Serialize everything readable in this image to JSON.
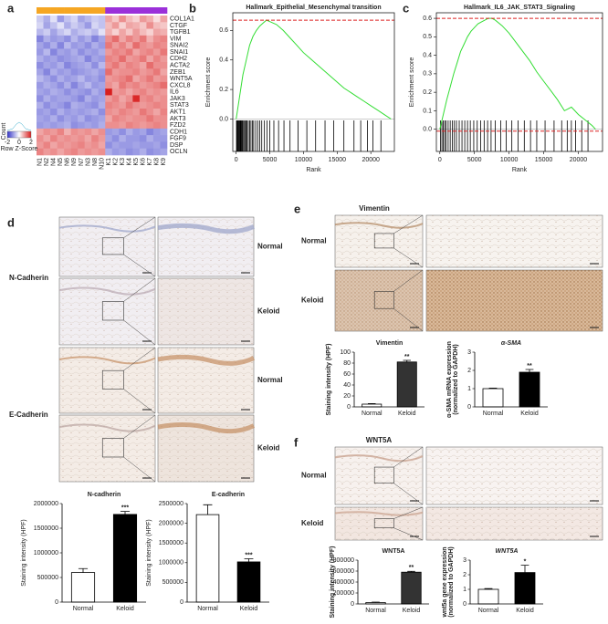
{
  "panel_labels": [
    "a",
    "b",
    "c",
    "d",
    "e",
    "f"
  ],
  "micrographs": {
    "d": {
      "rows": [
        "Normal",
        "Keloid",
        "Normal",
        "Keloid"
      ],
      "groups": [
        "N-Cadherin",
        "E-Cadherin"
      ]
    },
    "e": {
      "title": "Vimentin",
      "rows": [
        "Normal",
        "Keloid"
      ]
    },
    "f": {
      "title": "WNT5A",
      "rows": [
        "Normal",
        "Keloid"
      ]
    }
  },
  "chart_data": [
    {
      "type": "heatmap",
      "rows": [
        "COL1A1",
        "CTGF",
        "TGFB1",
        "VIM",
        "SNAI2",
        "SNAI1",
        "CDH2",
        "ACTA2",
        "ZEB1",
        "WNT5A",
        "CXCL8",
        "IL6",
        "JAK3",
        "STAT3",
        "AKT1",
        "AKT3",
        "FZD2",
        "CDH1",
        "FGF9",
        "DSP",
        "OCLN"
      ],
      "columns": [
        "N1",
        "N2",
        "N4",
        "N5",
        "N6",
        "N9",
        "N7",
        "N3",
        "N8",
        "N10",
        "K1",
        "K2",
        "K3",
        "K4",
        "K5",
        "K6",
        "K7",
        "K8",
        "K9"
      ],
      "column_colors": [
        "#f5a623",
        "#f5a623",
        "#f5a623",
        "#f5a623",
        "#f5a623",
        "#f5a623",
        "#f5a623",
        "#f5a623",
        "#f5a623",
        "#f5a623",
        "#9b30d9",
        "#9b30d9",
        "#9b30d9",
        "#9b30d9",
        "#9b30d9",
        "#9b30d9",
        "#9b30d9",
        "#9b30d9",
        "#9b30d9"
      ],
      "colorscale": [
        "#3434c8",
        "#ffffff",
        "#d81e1e"
      ],
      "zlim": [
        -2,
        2
      ],
      "colorbar": {
        "label": "Count",
        "title": "Row Z-Score",
        "ticks": [
          -2,
          0,
          2
        ]
      },
      "values": [
        [
          -0.5,
          -0.8,
          -0.3,
          -1.0,
          -0.6,
          -0.4,
          -0.9,
          -0.7,
          -0.5,
          -0.6,
          0.8,
          0.5,
          1.0,
          0.6,
          0.4,
          0.9,
          0.7,
          0.3,
          0.8
        ],
        [
          -0.4,
          -0.9,
          -0.6,
          -0.3,
          -0.8,
          -0.5,
          -0.7,
          -1.0,
          -0.4,
          -0.6,
          0.6,
          0.9,
          0.4,
          0.8,
          0.7,
          0.5,
          1.0,
          0.6,
          0.5
        ],
        [
          -0.7,
          -0.5,
          -0.9,
          -0.6,
          -0.4,
          -0.8,
          -0.6,
          -0.5,
          -0.7,
          -0.3,
          0.7,
          0.4,
          0.8,
          0.5,
          0.9,
          0.6,
          0.4,
          0.8,
          0.7
        ],
        [
          -1.2,
          -0.8,
          -1.0,
          -0.9,
          -1.1,
          -0.7,
          -1.0,
          -0.8,
          -1.2,
          -0.9,
          1.0,
          1.3,
          0.8,
          1.1,
          0.9,
          1.2,
          0.7,
          1.0,
          1.1
        ],
        [
          -0.9,
          -1.1,
          -0.8,
          -1.2,
          -0.7,
          -1.0,
          -0.9,
          -1.1,
          -0.8,
          -1.0,
          1.2,
          0.9,
          1.1,
          0.8,
          1.3,
          1.0,
          0.9,
          1.1,
          1.0
        ],
        [
          -1.0,
          -0.7,
          -1.2,
          -0.9,
          -1.0,
          -0.8,
          -1.1,
          -0.9,
          -1.0,
          -0.8,
          0.9,
          1.1,
          1.0,
          1.2,
          0.8,
          1.0,
          1.1,
          0.9,
          1.2
        ],
        [
          -0.8,
          -1.0,
          -0.9,
          -1.1,
          -1.0,
          -0.9,
          -0.8,
          -1.2,
          -0.9,
          -1.0,
          1.1,
          1.0,
          1.3,
          0.9,
          1.0,
          1.2,
          0.8,
          1.1,
          0.9
        ],
        [
          -1.1,
          -0.9,
          -1.0,
          -0.8,
          -1.2,
          -1.0,
          -0.9,
          -0.8,
          -1.1,
          -0.7,
          1.0,
          1.2,
          0.9,
          1.1,
          1.0,
          0.8,
          1.3,
          1.0,
          1.0
        ],
        [
          -0.9,
          -1.2,
          -0.8,
          -1.0,
          -0.9,
          -1.1,
          -1.0,
          -0.9,
          -0.8,
          -1.0,
          1.3,
          0.9,
          1.0,
          1.0,
          1.1,
          0.9,
          1.0,
          1.2,
          0.8
        ],
        [
          -0.7,
          -0.9,
          -1.1,
          -0.8,
          -1.0,
          -0.9,
          -0.7,
          -1.0,
          -0.9,
          -1.1,
          0.9,
          1.0,
          1.1,
          1.3,
          0.8,
          1.0,
          1.2,
          0.9,
          1.0
        ],
        [
          -1.0,
          -0.8,
          -0.9,
          -1.1,
          -0.8,
          -1.2,
          -0.9,
          -0.7,
          -1.0,
          -0.9,
          1.0,
          0.8,
          1.2,
          1.0,
          1.1,
          0.9,
          1.0,
          1.1,
          1.3
        ],
        [
          -0.9,
          -1.0,
          -0.8,
          -0.9,
          -1.1,
          -0.9,
          -1.0,
          -1.1,
          -0.8,
          -1.0,
          2.0,
          0.9,
          1.0,
          0.8,
          1.0,
          1.1,
          0.9,
          1.0,
          0.9
        ],
        [
          -1.1,
          -0.8,
          -1.0,
          -0.9,
          -0.9,
          -1.0,
          -1.2,
          -0.8,
          -1.0,
          -0.9,
          0.9,
          1.1,
          0.8,
          1.0,
          1.9,
          1.0,
          1.1,
          0.9,
          1.0
        ],
        [
          -0.8,
          -1.1,
          -0.9,
          -1.0,
          -1.2,
          -0.8,
          -0.9,
          -1.0,
          -1.1,
          -0.8,
          1.1,
          1.0,
          0.9,
          1.2,
          1.0,
          0.9,
          1.0,
          1.1,
          1.0
        ],
        [
          -1.0,
          -0.9,
          -1.1,
          -0.8,
          -1.0,
          -0.9,
          -1.0,
          -0.9,
          -0.8,
          -1.1,
          1.0,
          0.9,
          1.1,
          1.0,
          0.9,
          1.2,
          1.0,
          0.8,
          1.1
        ],
        [
          -0.9,
          -1.0,
          -0.8,
          -1.1,
          -0.9,
          -1.0,
          -0.8,
          -1.1,
          -1.0,
          -0.9,
          0.8,
          1.1,
          1.0,
          0.9,
          1.0,
          1.0,
          1.2,
          1.0,
          1.0
        ],
        [
          -1.0,
          -0.9,
          -1.0,
          -0.9,
          -0.8,
          -1.1,
          -1.0,
          -0.9,
          -1.0,
          -0.8,
          1.0,
          1.0,
          0.9,
          1.1,
          1.0,
          0.9,
          1.0,
          1.1,
          1.0
        ],
        [
          0.8,
          1.0,
          0.9,
          1.1,
          0.7,
          1.0,
          0.9,
          1.0,
          0.8,
          1.0,
          -1.0,
          -0.9,
          -1.1,
          -0.8,
          -1.0,
          -0.9,
          -1.2,
          -1.0,
          -0.9
        ],
        [
          1.0,
          0.8,
          1.1,
          0.9,
          1.0,
          0.9,
          1.0,
          0.8,
          1.1,
          0.9,
          -0.9,
          -1.1,
          -0.8,
          -1.0,
          -1.0,
          -1.1,
          -0.8,
          -1.0,
          -1.0
        ],
        [
          0.9,
          1.1,
          0.8,
          1.0,
          0.9,
          1.0,
          1.1,
          0.9,
          1.0,
          0.8,
          -1.1,
          -0.9,
          -1.0,
          -1.0,
          -0.9,
          -1.0,
          -1.0,
          -0.9,
          -1.1
        ],
        [
          1.1,
          0.9,
          1.0,
          0.8,
          1.0,
          1.1,
          0.9,
          1.0,
          0.9,
          1.0,
          -0.8,
          -1.0,
          -0.9,
          -1.1,
          -1.0,
          -0.8,
          -1.1,
          -1.0,
          -0.9
        ]
      ]
    },
    {
      "type": "line",
      "title": "Hallmark_Epithelial_Mesenchymal transition",
      "xlabel": "Rank",
      "ylabel": "Enrichment score",
      "color": "#33dd33",
      "ref_color": "#dd2222",
      "x": [
        0,
        500,
        1000,
        1500,
        2000,
        2500,
        3000,
        3500,
        4000,
        4500,
        5000,
        6000,
        7000,
        8000,
        9000,
        10000,
        11000,
        12000,
        13000,
        14000,
        15000,
        16000,
        17000,
        18000,
        19000,
        20000,
        21000,
        22000,
        23000
      ],
      "values": [
        0,
        0.15,
        0.3,
        0.4,
        0.5,
        0.56,
        0.6,
        0.63,
        0.65,
        0.67,
        0.66,
        0.64,
        0.6,
        0.55,
        0.5,
        0.45,
        0.41,
        0.37,
        0.33,
        0.29,
        0.25,
        0.21,
        0.18,
        0.15,
        0.12,
        0.09,
        0.06,
        0.03,
        0
      ],
      "hits": [
        50,
        150,
        250,
        300,
        400,
        500,
        600,
        700,
        800,
        900,
        1000,
        1150,
        1300,
        1450,
        1600,
        1800,
        2000,
        2200,
        2400,
        2600,
        2900,
        3200,
        3500,
        3800,
        4200,
        4600,
        5000,
        5600,
        6300,
        7100,
        8000,
        9200,
        10500,
        11800,
        13200,
        14500,
        16000,
        17500,
        18500,
        19500,
        20300,
        21500
      ],
      "max_es": 0.67,
      "xlim": [
        -500,
        23500
      ],
      "ylim": [
        -0.22,
        0.72
      ],
      "xticks": [
        0,
        5000,
        10000,
        15000,
        20000
      ],
      "yticks": [
        {
          "value": 0,
          "label": "0.0"
        },
        0.2,
        0.4,
        0.6
      ]
    },
    {
      "type": "line",
      "title": "Hallmark_IL6_JAK_STAT3_Signaling",
      "xlabel": "Rank",
      "ylabel": "Enrichment score",
      "color": "#33dd33",
      "ref_color": "#dd2222",
      "x": [
        0,
        500,
        1000,
        1500,
        2000,
        2500,
        3000,
        3500,
        4000,
        4500,
        5000,
        5500,
        6000,
        6500,
        7000,
        7500,
        8000,
        9000,
        10000,
        11000,
        12000,
        13000,
        14000,
        15000,
        16000,
        17000,
        18000,
        18500,
        19000,
        19500,
        20000,
        21000,
        22000,
        22500
      ],
      "values": [
        0,
        0.08,
        0.16,
        0.23,
        0.3,
        0.36,
        0.42,
        0.46,
        0.5,
        0.53,
        0.55,
        0.57,
        0.58,
        0.59,
        0.6,
        0.6,
        0.59,
        0.56,
        0.52,
        0.47,
        0.42,
        0.37,
        0.31,
        0.26,
        0.21,
        0.16,
        0.1,
        0.11,
        0.12,
        0.1,
        0.08,
        0.05,
        0.02,
        0
      ],
      "hits": [
        100,
        300,
        500,
        700,
        900,
        1200,
        1500,
        1800,
        2100,
        2400,
        2800,
        3200,
        3600,
        4000,
        4400,
        4900,
        5400,
        5900,
        6400,
        6900,
        7400,
        8000,
        8800,
        9600,
        10400,
        11300,
        12200,
        13100,
        14000,
        15200,
        16500,
        17600,
        18400,
        19000,
        19600,
        20500,
        21400
      ],
      "max_es": 0.6,
      "min_es": -0.01,
      "xlim": [
        -500,
        23500
      ],
      "ylim": [
        -0.12,
        0.63
      ],
      "xticks": [
        0,
        5000,
        10000,
        15000,
        20000
      ],
      "yticks": [
        {
          "value": 0,
          "label": "0.0"
        },
        0.1,
        0.2,
        0.3,
        0.4,
        0.5,
        0.6
      ]
    },
    {
      "type": "bar",
      "title": "N-cadherin",
      "ylabel": [
        "Staining intensity (HPF)"
      ],
      "categories": [
        "Normal",
        "Keloid"
      ],
      "values": [
        600000,
        1780000
      ],
      "errors": [
        80000,
        60000
      ],
      "colors": [
        "#ffffff",
        "#000000"
      ],
      "significance": {
        "category": "Keloid",
        "label": "***"
      },
      "ylim": [
        0,
        2000000
      ],
      "yticks": [
        0,
        500000,
        1000000,
        1500000,
        2000000
      ]
    },
    {
      "type": "bar",
      "title": "E-cadherin",
      "ylabel": [
        "Staining intensity (HPF)"
      ],
      "categories": [
        "Normal",
        "Keloid"
      ],
      "values": [
        2220000,
        1020000
      ],
      "errors": [
        250000,
        80000
      ],
      "colors": [
        "#ffffff",
        "#000000"
      ],
      "significance": {
        "category": "Keloid",
        "label": "***"
      },
      "ylim": [
        0,
        2500000
      ],
      "yticks": [
        0,
        500000,
        1000000,
        1500000,
        2000000,
        2500000
      ]
    },
    {
      "type": "bar",
      "title": "Vimentin",
      "ylabel": [
        "Staining intensity (HPF)"
      ],
      "categories": [
        "Normal",
        "Keloid"
      ],
      "values": [
        5,
        82
      ],
      "errors": [
        1,
        3
      ],
      "colors": [
        "#ffffff",
        "#333333"
      ],
      "significance": {
        "category": "Keloid",
        "label": "**"
      },
      "ylim": [
        0,
        100
      ],
      "yticks": [
        0,
        20,
        40,
        60,
        80,
        100
      ]
    },
    {
      "type": "bar",
      "title": "α-SMA",
      "title_style": "italic",
      "ylabel": [
        "α-SMA mRNA expression",
        "(normalized to GAPDH)"
      ],
      "categories": [
        "Normal",
        "Keloid"
      ],
      "values": [
        1.0,
        1.9
      ],
      "errors": [
        0.03,
        0.15
      ],
      "colors": [
        "#ffffff",
        "#000000"
      ],
      "significance": {
        "category": "Keloid",
        "label": "**"
      },
      "ylim": [
        0,
        3
      ],
      "yticks": [
        0,
        1,
        2,
        3
      ]
    },
    {
      "type": "bar",
      "title": "WNT5A",
      "ylabel": [
        "Staining intensity (HPF)"
      ],
      "categories": [
        "Normal",
        "Keloid"
      ],
      "values": [
        25000,
        580000
      ],
      "errors": [
        8000,
        15000
      ],
      "colors": [
        "#ffffff",
        "#333333"
      ],
      "significance": {
        "category": "Keloid",
        "label": "**"
      },
      "ylim": [
        0,
        800000
      ],
      "yticks": [
        0,
        200000,
        400000,
        600000,
        800000
      ]
    },
    {
      "type": "bar",
      "title": "WNT5A",
      "title_style": "italic",
      "ylabel": [
        "wnt5a gene expression",
        "(normalized to GAPDH)"
      ],
      "categories": [
        "Normal",
        "Keloid"
      ],
      "values": [
        1.0,
        2.15
      ],
      "errors": [
        0.05,
        0.5
      ],
      "colors": [
        "#ffffff",
        "#000000"
      ],
      "significance": {
        "category": "Keloid",
        "label": "*"
      },
      "ylim": [
        0,
        3
      ],
      "yticks": [
        0,
        1,
        2,
        3
      ]
    }
  ]
}
